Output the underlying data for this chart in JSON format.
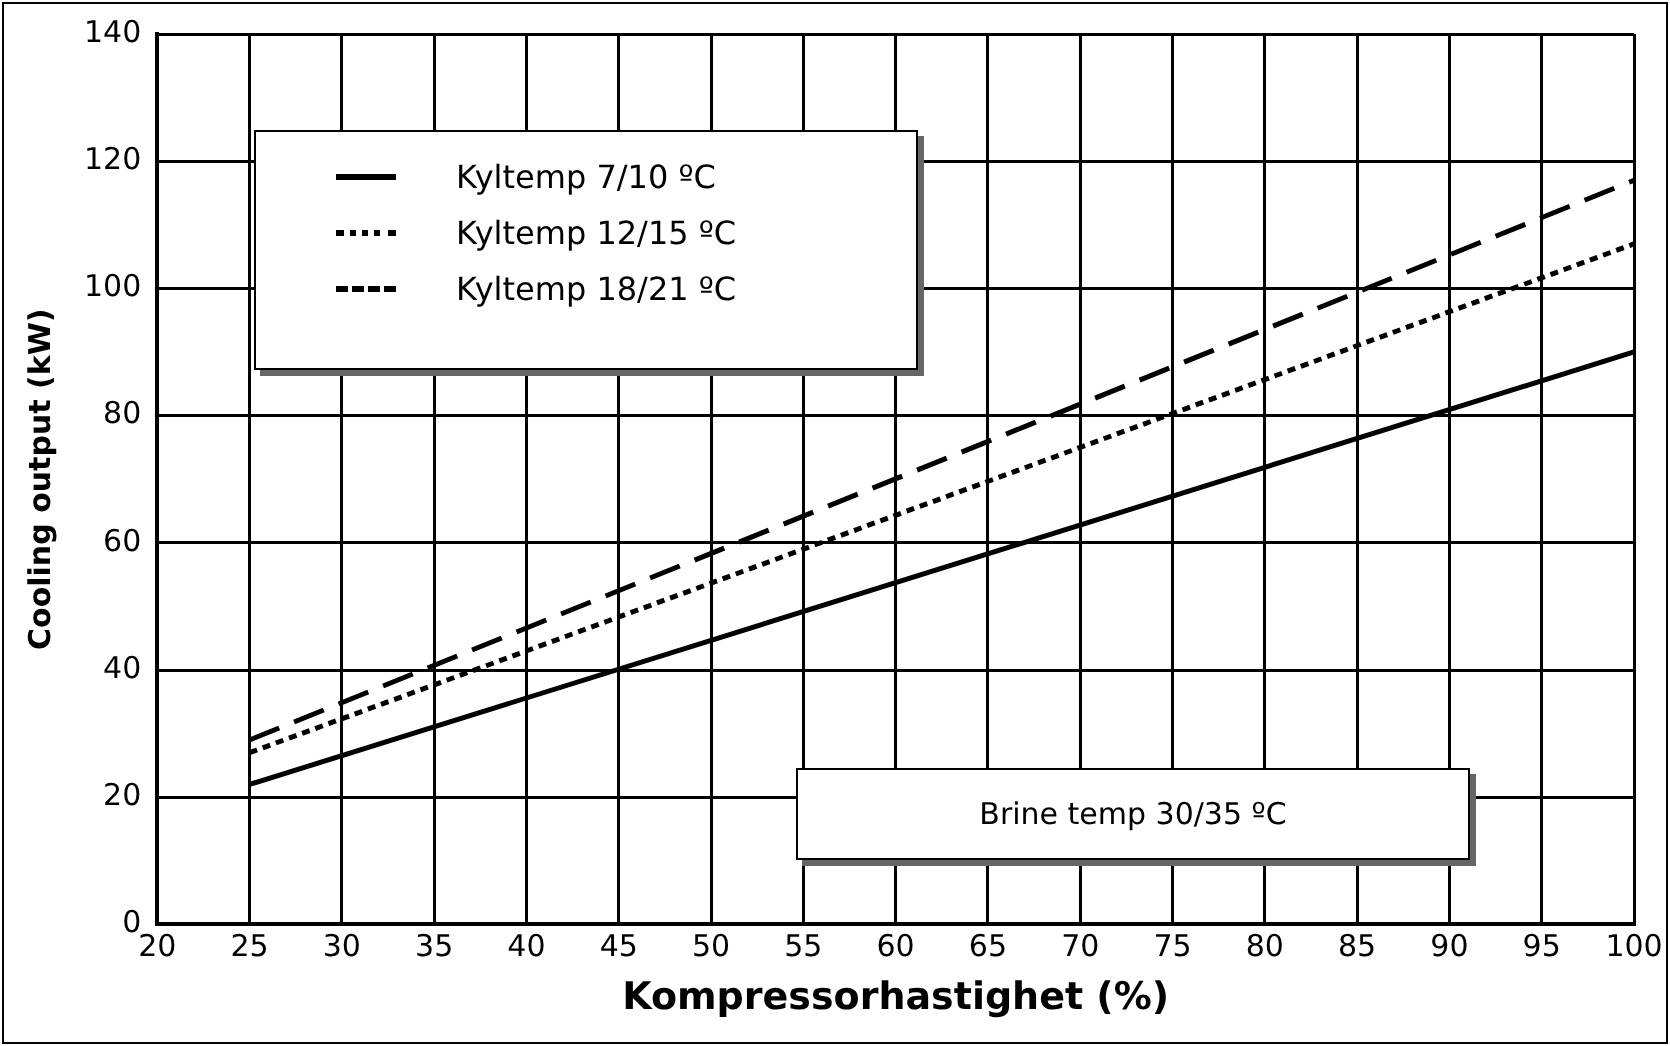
{
  "chart_data": {
    "type": "line",
    "xlabel": "Kompressorhastighet (%)",
    "ylabel": "Cooling output (kW)",
    "x": [
      25,
      100
    ],
    "series": [
      {
        "name": "Kyltemp 7/10 ºC",
        "color": "#000000",
        "values": [
          22,
          90
        ],
        "line_style": "solid"
      },
      {
        "name": "Kyltemp 12/15 ºC",
        "color": "#000000",
        "values": [
          27,
          107
        ],
        "line_style": "dotted"
      },
      {
        "name": "Kyltemp 18/21 ºC",
        "color": "#000000",
        "values": [
          29,
          117
        ],
        "line_style": "dashed"
      }
    ],
    "xlim": [
      20,
      100
    ],
    "xticks": [
      20,
      25,
      30,
      35,
      40,
      45,
      50,
      55,
      60,
      65,
      70,
      75,
      80,
      85,
      90,
      95,
      100
    ],
    "ylim": [
      0,
      140
    ],
    "yticks": [
      0,
      20,
      40,
      60,
      80,
      100,
      120,
      140
    ],
    "grid": true,
    "legend": "top left",
    "marker": "none",
    "annotations": [
      "Brine temp 30/35 ºC"
    ]
  }
}
